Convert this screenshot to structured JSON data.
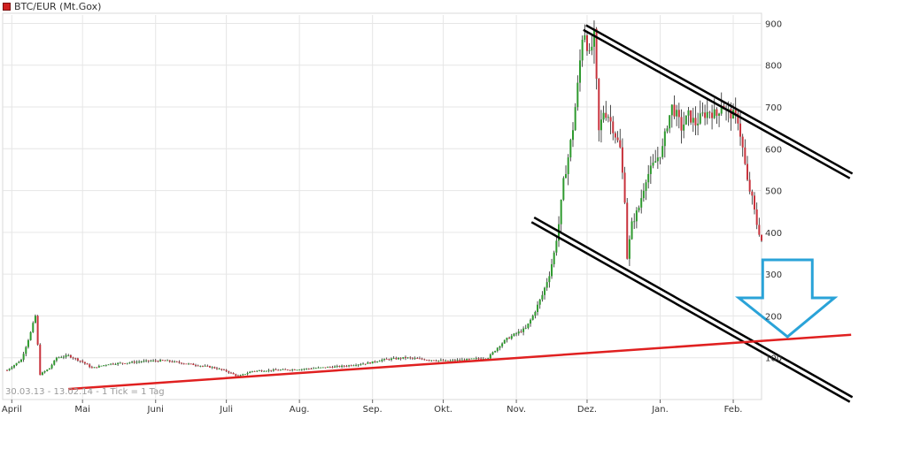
{
  "legend": {
    "series_label": "BTC/EUR (Mt.Gox)",
    "swatch_color": "#d02020"
  },
  "info_text": "30.03.13 - 13.02.14 - 1 Tick = 1 Tag",
  "chart_data": {
    "type": "candlestick",
    "title": "",
    "xlabel": "",
    "ylabel": "",
    "date_range": [
      "2013-03-30",
      "2014-02-13"
    ],
    "ylim": [
      0,
      920
    ],
    "grid": true,
    "y_axis_side": "right",
    "x_ticks": [
      {
        "label": "April",
        "date": "2013-04-01"
      },
      {
        "label": "Mai",
        "date": "2013-05-01"
      },
      {
        "label": "Juni",
        "date": "2013-06-01"
      },
      {
        "label": "Juli",
        "date": "2013-07-01"
      },
      {
        "label": "Aug.",
        "date": "2013-08-01"
      },
      {
        "label": "Sep.",
        "date": "2013-09-01"
      },
      {
        "label": "Okt.",
        "date": "2013-10-01"
      },
      {
        "label": "Nov.",
        "date": "2013-11-01"
      },
      {
        "label": "Dez.",
        "date": "2013-12-01"
      },
      {
        "label": "Jan.",
        "date": "2014-01-01"
      },
      {
        "label": "Feb.",
        "date": "2014-02-01"
      }
    ],
    "y_ticks": [
      100,
      200,
      300,
      400,
      500,
      600,
      700,
      800,
      900
    ],
    "price_path": [
      [
        "2013-03-30",
        70
      ],
      [
        "2013-04-05",
        95
      ],
      [
        "2013-04-09",
        160
      ],
      [
        "2013-04-11",
        200
      ],
      [
        "2013-04-13",
        60
      ],
      [
        "2013-04-17",
        75
      ],
      [
        "2013-04-20",
        100
      ],
      [
        "2013-04-25",
        105
      ],
      [
        "2013-05-01",
        90
      ],
      [
        "2013-05-05",
        75
      ],
      [
        "2013-05-12",
        85
      ],
      [
        "2013-05-20",
        88
      ],
      [
        "2013-05-28",
        92
      ],
      [
        "2013-06-05",
        93
      ],
      [
        "2013-06-15",
        85
      ],
      [
        "2013-06-25",
        77
      ],
      [
        "2013-07-01",
        68
      ],
      [
        "2013-07-06",
        55
      ],
      [
        "2013-07-12",
        68
      ],
      [
        "2013-07-20",
        70
      ],
      [
        "2013-07-31",
        72
      ],
      [
        "2013-08-10",
        76
      ],
      [
        "2013-08-20",
        80
      ],
      [
        "2013-08-31",
        88
      ],
      [
        "2013-09-05",
        95
      ],
      [
        "2013-09-15",
        100
      ],
      [
        "2013-09-25",
        95
      ],
      [
        "2013-09-30",
        93
      ],
      [
        "2013-10-02",
        92
      ],
      [
        "2013-10-10",
        95
      ],
      [
        "2013-10-20",
        100
      ],
      [
        "2013-10-25",
        130
      ],
      [
        "2013-10-28",
        145
      ],
      [
        "2013-10-31",
        155
      ],
      [
        "2013-11-05",
        170
      ],
      [
        "2013-11-08",
        200
      ],
      [
        "2013-11-12",
        250
      ],
      [
        "2013-11-15, ",
        300
      ],
      [
        "2013-11-17",
        350
      ],
      [
        "2013-11-19",
        420
      ],
      [
        "2013-11-21",
        520
      ],
      [
        "2013-11-23",
        580
      ],
      [
        "2013-11-25",
        650
      ],
      [
        "2013-11-27",
        750
      ],
      [
        "2013-11-29",
        870
      ],
      [
        "2013-11-30",
        880
      ],
      [
        "2013-12-02",
        820
      ],
      [
        "2013-12-04",
        870
      ],
      [
        "2013-12-06",
        640
      ],
      [
        "2013-12-08",
        690
      ],
      [
        "2013-12-10",
        680
      ],
      [
        "2013-12-12",
        650
      ],
      [
        "2013-12-15",
        600
      ],
      [
        "2013-12-17",
        480
      ],
      [
        "2013-12-18",
        340
      ],
      [
        "2013-12-20",
        420
      ],
      [
        "2013-12-23",
        460
      ],
      [
        "2013-12-26",
        530
      ],
      [
        "2013-12-29",
        560
      ],
      [
        "2013-12-31",
        580
      ],
      [
        "2014-01-02",
        600
      ],
      [
        "2014-01-04",
        660
      ],
      [
        "2014-01-06",
        700
      ],
      [
        "2014-01-08",
        680
      ],
      [
        "2014-01-10",
        650
      ],
      [
        "2014-01-13",
        680
      ],
      [
        "2014-01-16",
        660
      ],
      [
        "2014-01-19",
        680
      ],
      [
        "2014-01-22",
        690
      ],
      [
        "2014-01-25",
        680
      ],
      [
        "2014-01-27",
        710
      ],
      [
        "2014-01-29",
        690
      ],
      [
        "2014-02-01",
        680
      ],
      [
        "2014-02-03",
        670
      ],
      [
        "2014-02-05",
        600
      ],
      [
        "2014-02-07",
        520
      ],
      [
        "2014-02-09",
        480
      ],
      [
        "2014-02-11",
        420
      ],
      [
        "2014-02-13",
        380
      ]
    ],
    "trendlines": [
      {
        "name": "upper-channel",
        "color": "#000000",
        "double": true,
        "start": [
          "2013-11-30",
          890
        ],
        "end": [
          "2014-03-23",
          535
        ]
      },
      {
        "name": "lower-channel",
        "color": "#000000",
        "double": true,
        "start": [
          "2013-11-08",
          430
        ],
        "end": [
          "2014-03-23",
          0
        ]
      },
      {
        "name": "support-line",
        "color": "#e02020",
        "double": false,
        "start": [
          "2013-04-25",
          25
        ],
        "end": [
          "2014-03-23",
          155
        ]
      }
    ],
    "annotation": {
      "type": "arrow-down",
      "color": "#2aa3d8",
      "at": [
        "2014-02-24",
        230
      ]
    }
  }
}
